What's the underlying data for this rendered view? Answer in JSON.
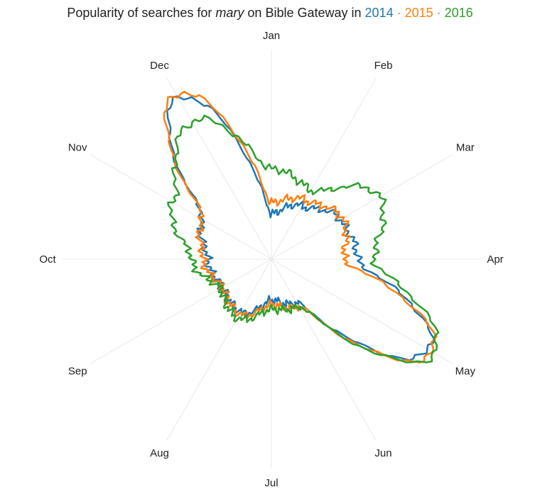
{
  "title": {
    "prefix": "Popularity of searches for ",
    "term": "mary",
    "suffix": " on Bible Gateway in ",
    "separator": " · ",
    "years": [
      "2014",
      "2015",
      "2016"
    ]
  },
  "colors": {
    "2014": "#1f77b4",
    "2015": "#ff7f0e",
    "2016": "#2ca02c",
    "grid": "#e8e8e8",
    "text": "#222222"
  },
  "chart_data": {
    "type": "radar",
    "title": "Popularity of searches for mary on Bible Gateway in 2014 · 2015 · 2016",
    "axes": [
      "Jan",
      "Feb",
      "Mar",
      "Apr",
      "May",
      "Jun",
      "Jul",
      "Aug",
      "Sep",
      "Oct",
      "Nov",
      "Dec"
    ],
    "scale_note": "relative popularity, 0 = center, 1 = outer ring",
    "grid": true,
    "legend": "title",
    "series": [
      {
        "name": "2014",
        "values": [
          0.2,
          0.27,
          0.35,
          0.38,
          0.8,
          0.22,
          0.18,
          0.27,
          0.25,
          0.28,
          0.35,
          0.82
        ]
      },
      {
        "name": "2015",
        "values": [
          0.25,
          0.3,
          0.36,
          0.32,
          0.82,
          0.24,
          0.2,
          0.28,
          0.25,
          0.3,
          0.35,
          0.84
        ]
      },
      {
        "name": "2016",
        "values": [
          0.4,
          0.35,
          0.55,
          0.45,
          0.83,
          0.24,
          0.22,
          0.3,
          0.26,
          0.35,
          0.5,
          0.7
        ]
      }
    ]
  }
}
